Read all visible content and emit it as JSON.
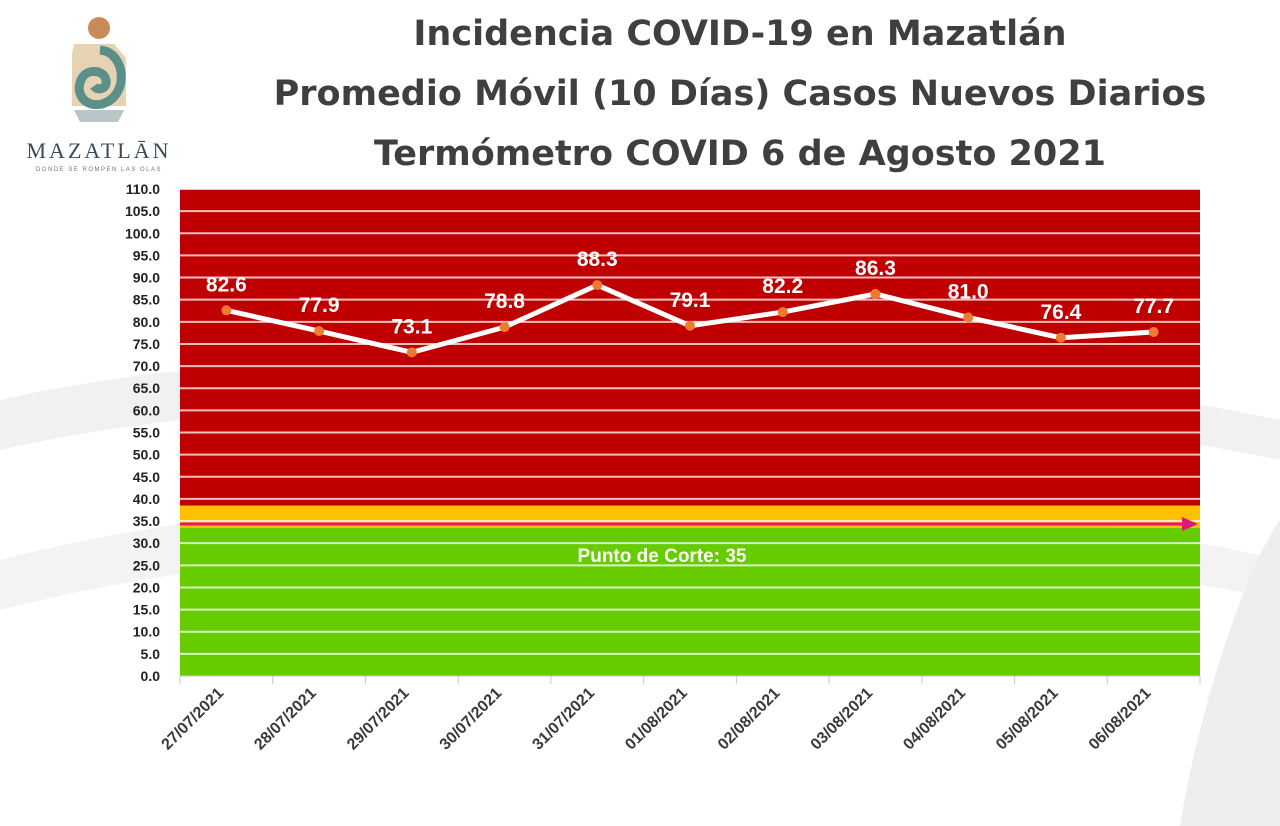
{
  "branding": {
    "logo_word": "MAZATLĀN",
    "logo_tagline": "DONDE SE ROMPEN LAS OLAS"
  },
  "header": {
    "title_line_1": "Incidencia COVID-19 en Mazatlán",
    "title_line_2": "Promedio Móvil (10 Días) Casos Nuevos Diarios",
    "title_line_3": "Termómetro COVID 6 de Agosto 2021"
  },
  "colors": {
    "red_zone": "#c00000",
    "orange_zone": "#ffc000",
    "green_zone": "#66cc00",
    "line": "#ffffff",
    "marker": "#f07a30",
    "cut_line": "#e0187c"
  },
  "chart_data": {
    "type": "line",
    "title": "Incidencia COVID-19 en Mazatlán",
    "x": [
      "27/07/2021",
      "28/07/2021",
      "29/07/2021",
      "30/07/2021",
      "31/07/2021",
      "01/08/2021",
      "02/08/2021",
      "03/08/2021",
      "04/08/2021",
      "05/08/2021",
      "06/08/2021"
    ],
    "series": [
      {
        "values": [
          82.6,
          77.9,
          73.1,
          78.8,
          88.3,
          79.1,
          82.2,
          86.3,
          81.0,
          76.4,
          77.7
        ],
        "labels": [
          "82.6",
          "77.9",
          "73.1",
          "78.8",
          "88.3",
          "79.1",
          "82.2",
          "86.3",
          "81.0",
          "76.4",
          "77.7"
        ]
      }
    ],
    "ylim": [
      0,
      110
    ],
    "y_ticks": [
      "0.0",
      "5.0",
      "10.0",
      "15.0",
      "20.0",
      "25.0",
      "30.0",
      "35.0",
      "40.0",
      "45.0",
      "50.0",
      "55.0",
      "60.0",
      "65.0",
      "70.0",
      "75.0",
      "80.0",
      "85.0",
      "90.0",
      "95.0",
      "100.0",
      "105.0",
      "110.0"
    ],
    "grid": true,
    "bands": [
      {
        "from": 0,
        "to": 33.5,
        "zone": "green"
      },
      {
        "from": 33.5,
        "to": 38.5,
        "zone": "orange"
      },
      {
        "from": 38.5,
        "to": 110,
        "zone": "red"
      }
    ],
    "cut_point": {
      "value": 35,
      "label": "Punto de Corte: 35"
    }
  }
}
